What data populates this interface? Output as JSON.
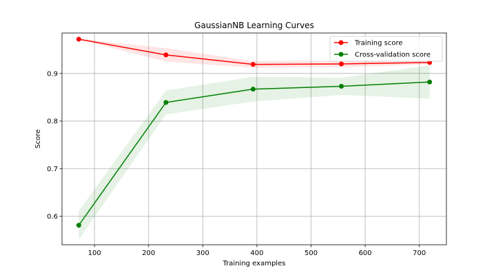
{
  "chart_data": {
    "type": "line",
    "title": "GaussianNB Learning Curves",
    "xlabel": "Training examples",
    "ylabel": "Score",
    "xlim": [
      40,
      750
    ],
    "ylim": [
      0.54,
      0.985
    ],
    "x_ticks": [
      100,
      200,
      300,
      400,
      500,
      600,
      700
    ],
    "y_ticks": [
      0.6,
      0.7,
      0.8,
      0.9
    ],
    "grid": true,
    "legend_position": "top-right",
    "series": [
      {
        "name": "Training score",
        "color": "#ff0000",
        "fill_color": "rgba(255,0,0,0.1)",
        "x": [
          71,
          232,
          393,
          556,
          719
        ],
        "y": [
          0.972,
          0.939,
          0.919,
          0.92,
          0.923
        ],
        "y_upper": [
          0.973,
          0.953,
          0.926,
          0.927,
          0.927
        ],
        "y_lower": [
          0.971,
          0.925,
          0.912,
          0.913,
          0.919
        ]
      },
      {
        "name": "Cross-validation score",
        "color": "#008000",
        "fill_color": "rgba(0,128,0,0.1)",
        "x": [
          71,
          232,
          393,
          556,
          719
        ],
        "y": [
          0.581,
          0.839,
          0.867,
          0.873,
          0.882
        ],
        "y_upper": [
          0.611,
          0.864,
          0.893,
          0.891,
          0.917
        ],
        "y_lower": [
          0.551,
          0.814,
          0.841,
          0.855,
          0.847
        ]
      }
    ]
  }
}
